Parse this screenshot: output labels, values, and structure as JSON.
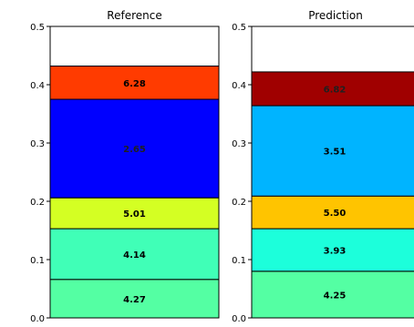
{
  "chart_data": [
    {
      "type": "bar",
      "title": "Reference",
      "stacked": true,
      "ylim": [
        0,
        0.5
      ],
      "yticks": [
        "0.0",
        "0.1",
        "0.2",
        "0.3",
        "0.4",
        "0.5"
      ],
      "segments": [
        {
          "y0": 0.0,
          "y1": 0.066,
          "color": "#54ffa3",
          "label": "4.27"
        },
        {
          "y0": 0.066,
          "y1": 0.153,
          "color": "#40ffb7",
          "label": "4.14"
        },
        {
          "y0": 0.153,
          "y1": 0.206,
          "color": "#d4ff23",
          "label": "5.01"
        },
        {
          "y0": 0.206,
          "y1": 0.375,
          "color": "#0000ff",
          "label": "2.65"
        },
        {
          "y0": 0.375,
          "y1": 0.432,
          "color": "#ff3b00",
          "label": "6.28"
        }
      ]
    },
    {
      "type": "bar",
      "title": "Prediction",
      "stacked": true,
      "ylim": [
        0,
        0.5
      ],
      "yticks": [
        "0.0",
        "0.1",
        "0.2",
        "0.3",
        "0.4",
        "0.5"
      ],
      "segments": [
        {
          "y0": 0.0,
          "y1": 0.08,
          "color": "#54ffa3",
          "label": "4.25"
        },
        {
          "y0": 0.08,
          "y1": 0.153,
          "color": "#1cffdb",
          "label": "3.93"
        },
        {
          "y0": 0.153,
          "y1": 0.209,
          "color": "#ffc400",
          "label": "5.50"
        },
        {
          "y0": 0.209,
          "y1": 0.364,
          "color": "#00b4ff",
          "label": "3.51"
        },
        {
          "y0": 0.364,
          "y1": 0.422,
          "color": "#a00000",
          "label": "6.82"
        }
      ]
    }
  ]
}
